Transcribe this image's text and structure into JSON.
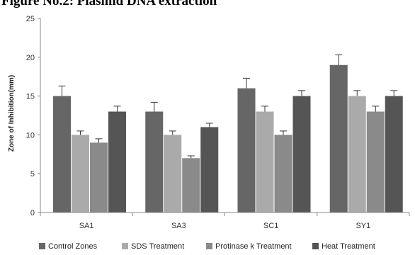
{
  "figure_title": "Figure No.2: Plasmid DNA extraction",
  "chart_data": {
    "type": "bar",
    "title": "Figure No.2: Plasmid DNA extraction",
    "xlabel": "",
    "ylabel": "Zone of Inhibition(mm)",
    "ylim": [
      0,
      25
    ],
    "yticks": [
      0,
      5,
      10,
      15,
      20,
      25
    ],
    "grid": false,
    "error_bars": true,
    "legend_position": "bottom",
    "categories": [
      "SA1",
      "SA3",
      "SC1",
      "SY1"
    ],
    "series": [
      {
        "name": "Control Zones",
        "color": "#666666",
        "values": [
          15,
          13,
          16,
          19
        ],
        "errors": [
          1.3,
          1.2,
          1.3,
          1.3
        ]
      },
      {
        "name": "SDS Treatment",
        "color": "#aaaaaa",
        "values": [
          10,
          10,
          13,
          15
        ],
        "errors": [
          0.5,
          0.5,
          0.7,
          0.7
        ]
      },
      {
        "name": "Protinase k Treatment",
        "color": "#8a8a8a",
        "values": [
          9,
          7,
          10,
          13
        ],
        "errors": [
          0.5,
          0.3,
          0.5,
          0.7
        ]
      },
      {
        "name": "Heat Treatment",
        "color": "#555555",
        "values": [
          13,
          11,
          15,
          15
        ],
        "errors": [
          0.7,
          0.5,
          0.7,
          0.7
        ]
      }
    ]
  }
}
